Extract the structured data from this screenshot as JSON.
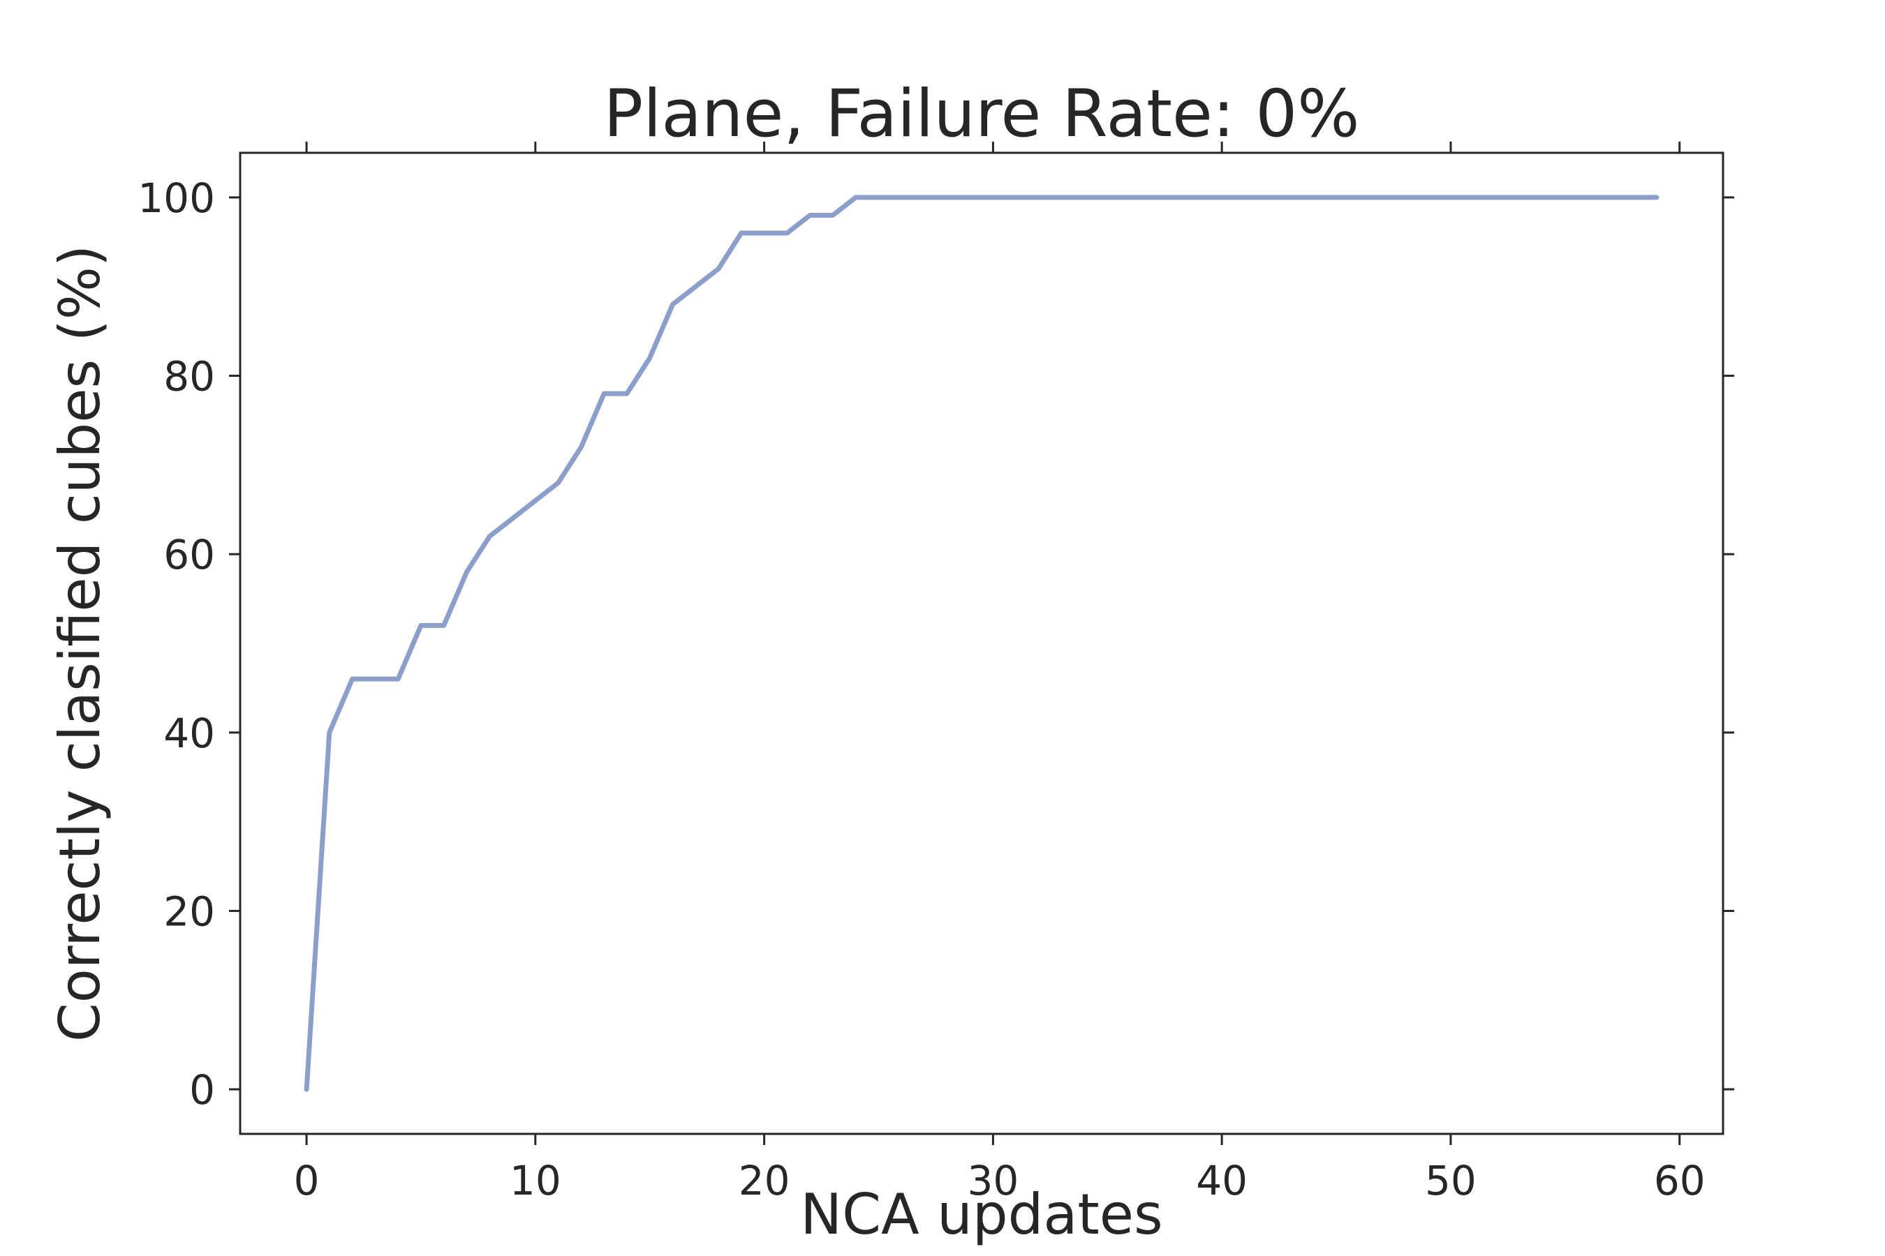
{
  "chart_data": {
    "type": "line",
    "title": "Plane, Failure Rate: 0%",
    "xlabel": "NCA updates",
    "ylabel": "Correctly clasified cubes (%)",
    "xlim": [
      -2.9,
      61.9
    ],
    "ylim": [
      -5,
      105
    ],
    "xticks": [
      0,
      10,
      20,
      30,
      40,
      50,
      60
    ],
    "yticks": [
      0,
      20,
      40,
      60,
      80,
      100
    ],
    "xtick_labels": [
      "0",
      "10",
      "20",
      "30",
      "40",
      "50",
      "60"
    ],
    "ytick_labels": [
      "0",
      "20",
      "40",
      "60",
      "80",
      "100"
    ],
    "grid": false,
    "line_color": "#8c9fca",
    "series": [
      {
        "x": [
          0,
          1,
          2,
          3,
          4,
          5,
          6,
          7,
          8,
          9,
          10,
          11,
          12,
          13,
          14,
          15,
          16,
          17,
          18,
          19,
          20,
          21,
          22,
          23,
          24,
          25,
          26,
          27,
          28,
          29,
          30,
          31,
          32,
          33,
          34,
          35,
          36,
          37,
          38,
          39,
          40,
          41,
          42,
          43,
          44,
          45,
          46,
          47,
          48,
          49,
          50,
          51,
          52,
          53,
          54,
          55,
          56,
          57,
          58,
          59
        ],
        "values": [
          0,
          40,
          46,
          46,
          46,
          52,
          52,
          58,
          62,
          64,
          66,
          68,
          72,
          78,
          78,
          82,
          88,
          90,
          92,
          96,
          96,
          96,
          98,
          98,
          100,
          100,
          100,
          100,
          100,
          100,
          100,
          100,
          100,
          100,
          100,
          100,
          100,
          100,
          100,
          100,
          100,
          100,
          100,
          100,
          100,
          100,
          100,
          100,
          100,
          100,
          100,
          100,
          100,
          100,
          100,
          100,
          100,
          100,
          100,
          100
        ]
      }
    ]
  }
}
